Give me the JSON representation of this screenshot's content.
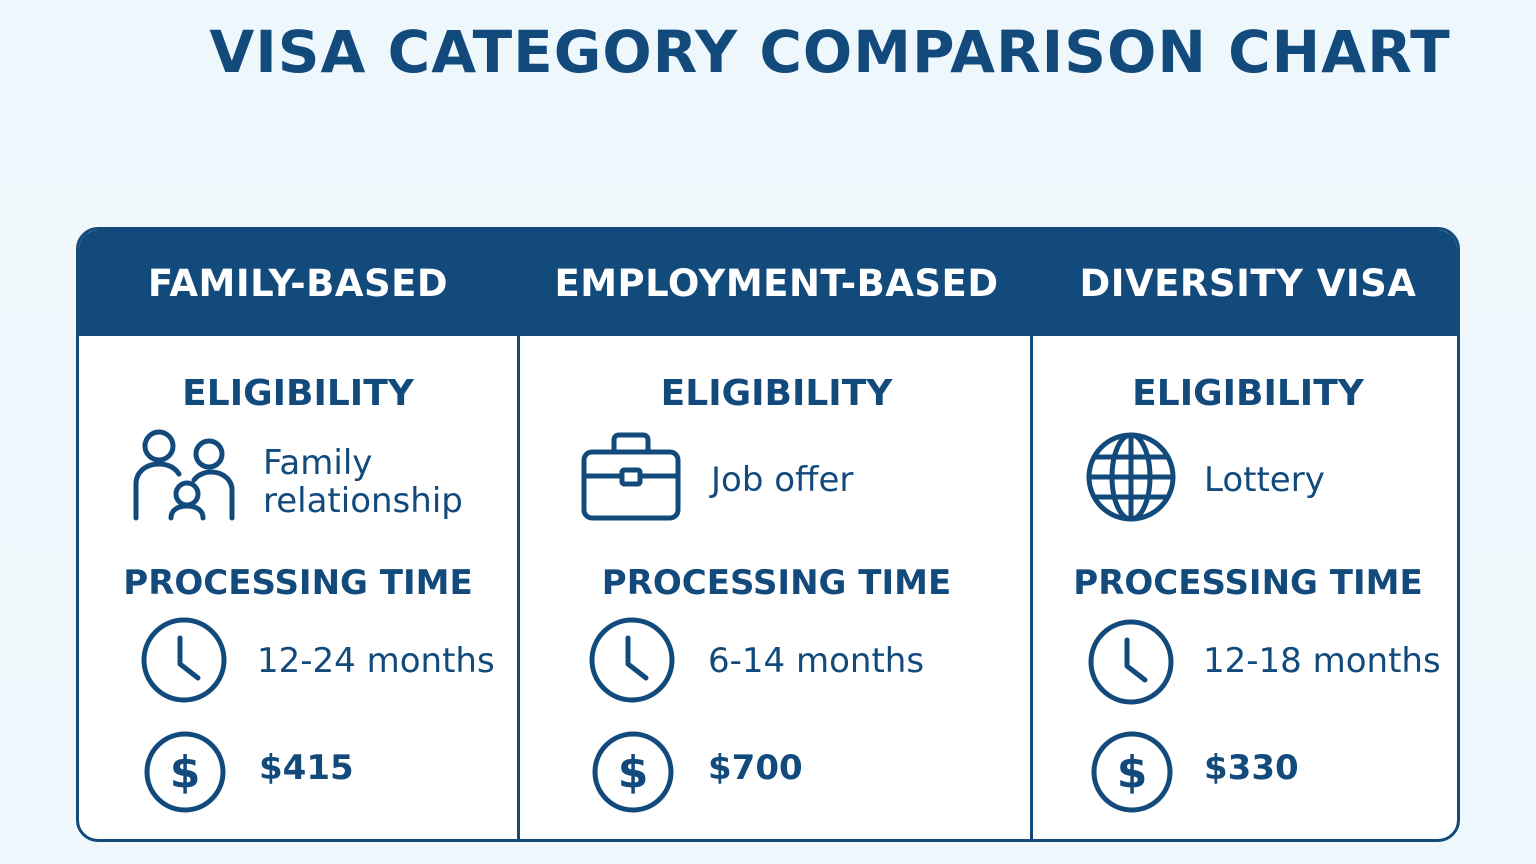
{
  "title": "VISA CATEGORY COMPARISON CHART",
  "columns": [
    {
      "header": "FAMILY-BASED",
      "eligibility_label": "ELIGIBILITY",
      "eligibility_icon": "family-icon",
      "eligibility_value": "Family relationship",
      "processing_label": "PROCESSING TIME",
      "processing_value": "12-24 months",
      "fee": "$415"
    },
    {
      "header": "EMPLOYMENT-BASED",
      "eligibility_label": "ELIGIBILITY",
      "eligibility_icon": "briefcase-icon",
      "eligibility_value": "Job offer",
      "processing_label": "PROCESSING TIME",
      "processing_value": "6-14 months",
      "fee": "$700"
    },
    {
      "header": "DIVERSITY VISA",
      "eligibility_label": "ELIGIBILITY",
      "eligibility_icon": "globe-icon",
      "eligibility_value": "Lottery",
      "processing_label": "PROCESSING TIME",
      "processing_value": "12-18 months",
      "fee": "$330"
    }
  ],
  "colors": {
    "primary": "#124a7c",
    "background": "#eef7fc",
    "card": "#ffffff"
  }
}
